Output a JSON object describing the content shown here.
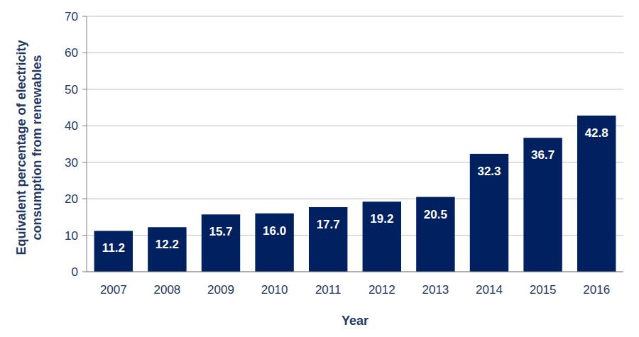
{
  "chart_data": {
    "type": "bar",
    "x_label": "Year",
    "y_label": "Equivalent percentage of electricity consumption from renewables",
    "categories": [
      "2007",
      "2008",
      "2009",
      "2010",
      "2011",
      "2012",
      "2013",
      "2014",
      "2015",
      "2016"
    ],
    "values": [
      11.2,
      12.2,
      15.7,
      16.0,
      17.7,
      19.2,
      20.5,
      32.3,
      36.7,
      42.8
    ],
    "value_labels": [
      "11.2",
      "12.2",
      "15.7",
      "16.0",
      "17.7",
      "19.2",
      "20.5",
      "32.3",
      "36.7",
      "42.8"
    ],
    "color": "#002060",
    "ylim": [
      0,
      70
    ],
    "yticks": [
      0,
      10,
      20,
      30,
      40,
      50,
      60,
      70
    ],
    "grid": true,
    "data_labels": true
  }
}
